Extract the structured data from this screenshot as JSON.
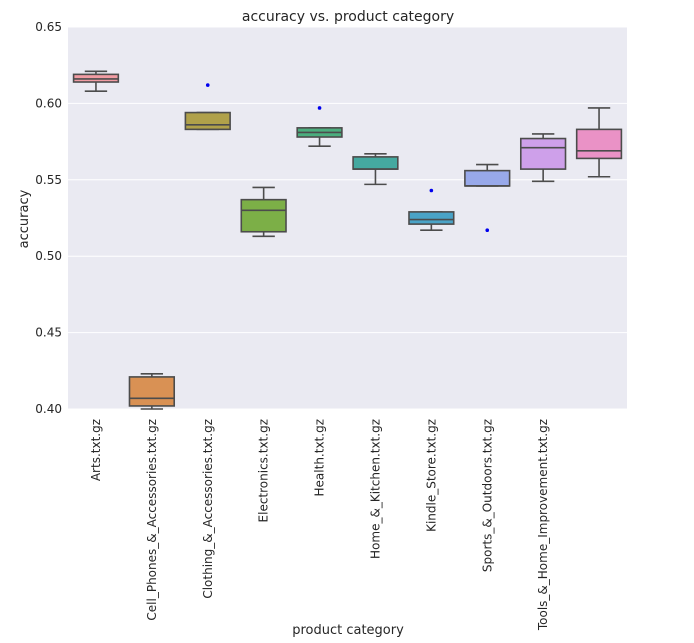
{
  "chart_data": {
    "type": "box",
    "title": "accuracy vs. product category",
    "xlabel": "product category",
    "ylabel": "accuracy",
    "ylim": [
      0.4,
      0.65
    ],
    "yticks": [
      "0.40",
      "0.45",
      "0.50",
      "0.55",
      "0.60",
      "0.65"
    ],
    "grid": true,
    "background": "#EAEAF2",
    "categories": [
      "Arts.txt.gz",
      "Cell_Phones_&_Accessories.txt.gz",
      "Clothing_&_Accessories.txt.gz",
      "Electronics.txt.gz",
      "Health.txt.gz",
      "Home_&_Kitchen.txt.gz",
      "Kindle_Store.txt.gz",
      "Sports_&_Outdoors.txt.gz",
      "Tools_&_Home_Improvement.txt.gz",
      ""
    ],
    "boxes": [
      {
        "color": "#F19CA3",
        "whislo": 0.608,
        "q1": 0.614,
        "med": 0.616,
        "q3": 0.619,
        "whishi": 0.621,
        "fliers": []
      },
      {
        "color": "#D99154",
        "whislo": 0.4,
        "q1": 0.402,
        "med": 0.407,
        "q3": 0.421,
        "whishi": 0.423,
        "fliers": []
      },
      {
        "color": "#B0A14A",
        "whislo": 0.583,
        "q1": 0.583,
        "med": 0.586,
        "q3": 0.594,
        "whishi": 0.594,
        "fliers": [
          0.612
        ]
      },
      {
        "color": "#7CAF47",
        "whislo": 0.513,
        "q1": 0.516,
        "med": 0.53,
        "q3": 0.537,
        "whishi": 0.545,
        "fliers": []
      },
      {
        "color": "#4BAE7E",
        "whislo": 0.572,
        "q1": 0.578,
        "med": 0.581,
        "q3": 0.584,
        "whishi": 0.584,
        "fliers": [
          0.597
        ]
      },
      {
        "color": "#45A9A0",
        "whislo": 0.547,
        "q1": 0.557,
        "med": 0.557,
        "q3": 0.565,
        "whishi": 0.567,
        "fliers": []
      },
      {
        "color": "#4AA3C7",
        "whislo": 0.517,
        "q1": 0.521,
        "med": 0.524,
        "q3": 0.529,
        "whishi": 0.529,
        "fliers": [
          0.543
        ]
      },
      {
        "color": "#98A9EA",
        "whislo": 0.546,
        "q1": 0.546,
        "med": 0.546,
        "q3": 0.556,
        "whishi": 0.56,
        "fliers": [
          0.517
        ]
      },
      {
        "color": "#CEA0EA",
        "whislo": 0.549,
        "q1": 0.557,
        "med": 0.571,
        "q3": 0.577,
        "whishi": 0.58,
        "fliers": []
      },
      {
        "color": "#EA92C6",
        "whislo": 0.552,
        "q1": 0.564,
        "med": 0.569,
        "q3": 0.583,
        "whishi": 0.597,
        "fliers": []
      }
    ],
    "flier_color": "#0000EE",
    "line_color": "#4C4C4C"
  }
}
